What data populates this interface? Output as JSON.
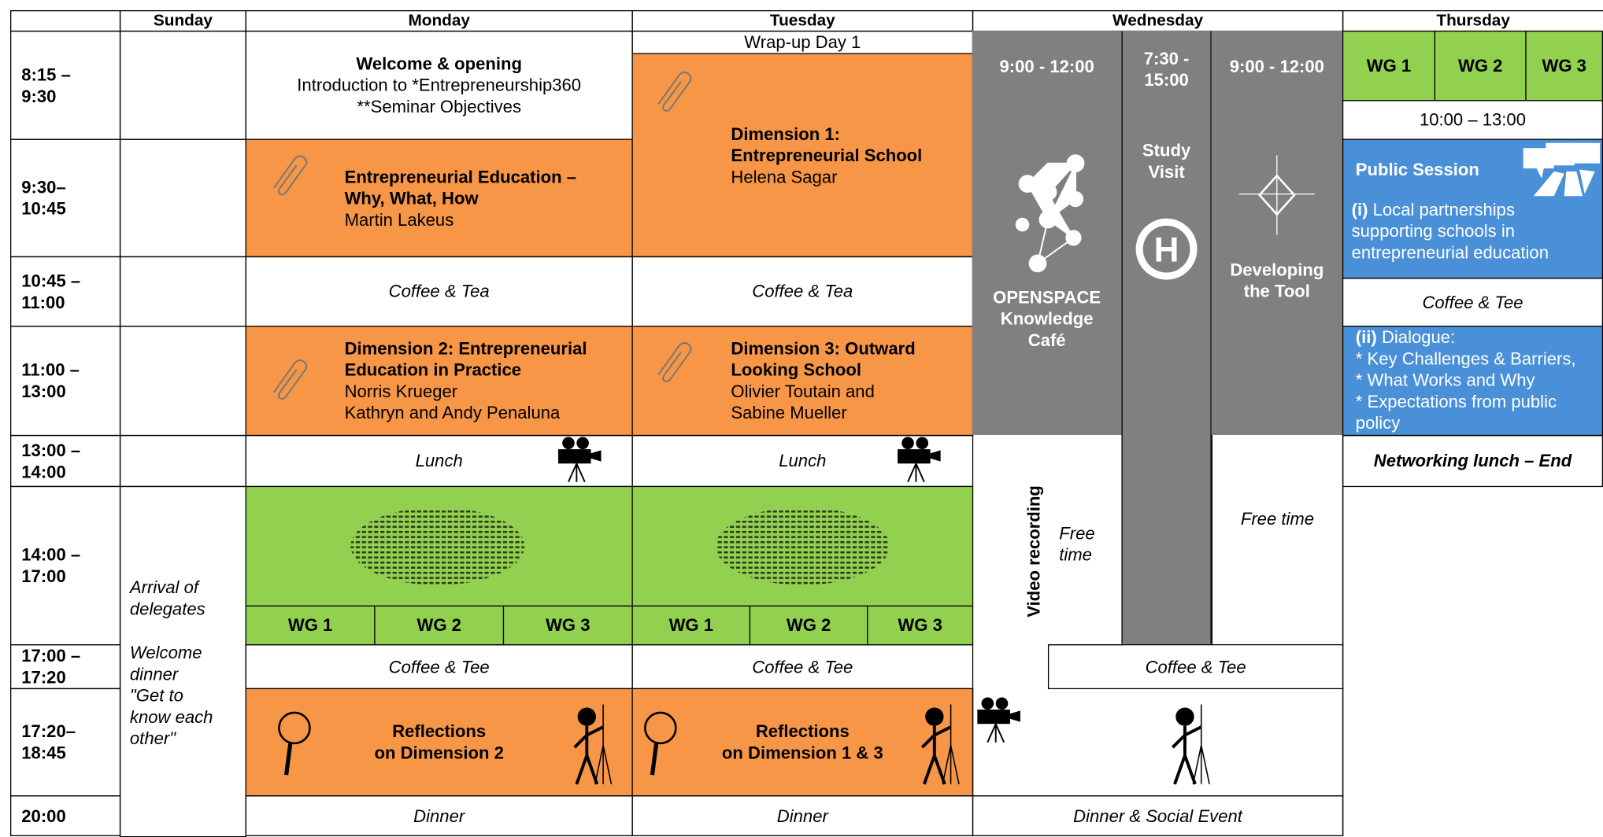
{
  "days": [
    "Sunday",
    "Monday",
    "Tuesday",
    "Wednesday",
    "Thursday"
  ],
  "times": [
    [
      "8:15 –",
      "9:30"
    ],
    [
      "9:30–",
      "10:45"
    ],
    [
      "10:45 –",
      "11:00"
    ],
    [
      "11:00 –",
      "13:00"
    ],
    [
      "13:00 –",
      "14:00"
    ],
    [
      "14:00 –",
      "17:00"
    ],
    [
      "17:00 –",
      "17:20"
    ],
    [
      "17:20–",
      "18:45"
    ],
    [
      "20:00"
    ]
  ],
  "sunday": {
    "arrival": "Arrival of delegates",
    "dinner": "Welcome dinner",
    "dinner_note": "\"Get to know each other\""
  },
  "monday": {
    "welcome": {
      "title": "Welcome & opening",
      "lines": [
        "Introduction to *Entrepreneurship360",
        "**Seminar Objectives"
      ]
    },
    "session1": {
      "title": "Entrepreneurial Education – Why, What, How",
      "speakers": [
        "Martin Lakeus"
      ]
    },
    "coffee": "Coffee & Tea",
    "session2": {
      "title": "Dimension 2: Entrepreneurial Education in Practice",
      "speakers": [
        "Norris Krueger",
        "Kathryn and Andy Penaluna"
      ]
    },
    "lunch": "Lunch",
    "working_groups": [
      "WG 1",
      "WG 2",
      "WG 3"
    ],
    "afternoon_coffee": "Coffee & Tee",
    "reflection": [
      "Reflections",
      "on Dimension 2"
    ],
    "dinner": "Dinner"
  },
  "tuesday": {
    "wrapup": "Wrap-up Day 1",
    "session1": {
      "title": "Dimension 1: Entrepreneurial School",
      "speakers": [
        "Helena Sagar"
      ]
    },
    "coffee": "Coffee & Tea",
    "session2": {
      "title": "Dimension 3: Outward Looking School",
      "speakers": [
        "Olivier Toutain and",
        "Sabine Mueller"
      ]
    },
    "lunch": "Lunch",
    "working_groups": [
      "WG 1",
      "WG 2",
      "WG 3"
    ],
    "afternoon_coffee": "Coffee & Tee",
    "reflection": [
      "Reflections",
      "on Dimension 1 & 3"
    ],
    "dinner": "Dinner"
  },
  "wednesday": {
    "openspace": {
      "time": "9:00 - 12:00",
      "title": "OPENSPACE Knowledge Café"
    },
    "study_visit": {
      "time": "7:30 - 15:00",
      "title": "Study Visit"
    },
    "tool": {
      "time": "9:00 - 12:00",
      "title": "Developing the Tool"
    },
    "video": "Video recording",
    "free_time_1": "Free time",
    "free_time_2": "Free time",
    "coffee": "Coffee & Tee",
    "dinner": "Dinner & Social Event"
  },
  "thursday": {
    "working_groups": [
      "WG 1",
      "WG 2",
      "WG 3"
    ],
    "time": "10:00 – 13:00",
    "public_session": "Public Session",
    "item1": {
      "prefix": "(i)",
      "text": "Local partnerships supporting schools in entrepreneurial education"
    },
    "coffee": "Coffee & Tee",
    "item2": {
      "prefix": "(ii)",
      "text": "Dialogue:",
      "bullets": [
        "* Key Challenges & Barriers,",
        "* What Works and Why",
        "* Expectations from public policy"
      ]
    },
    "lunch": "Networking lunch – End"
  }
}
